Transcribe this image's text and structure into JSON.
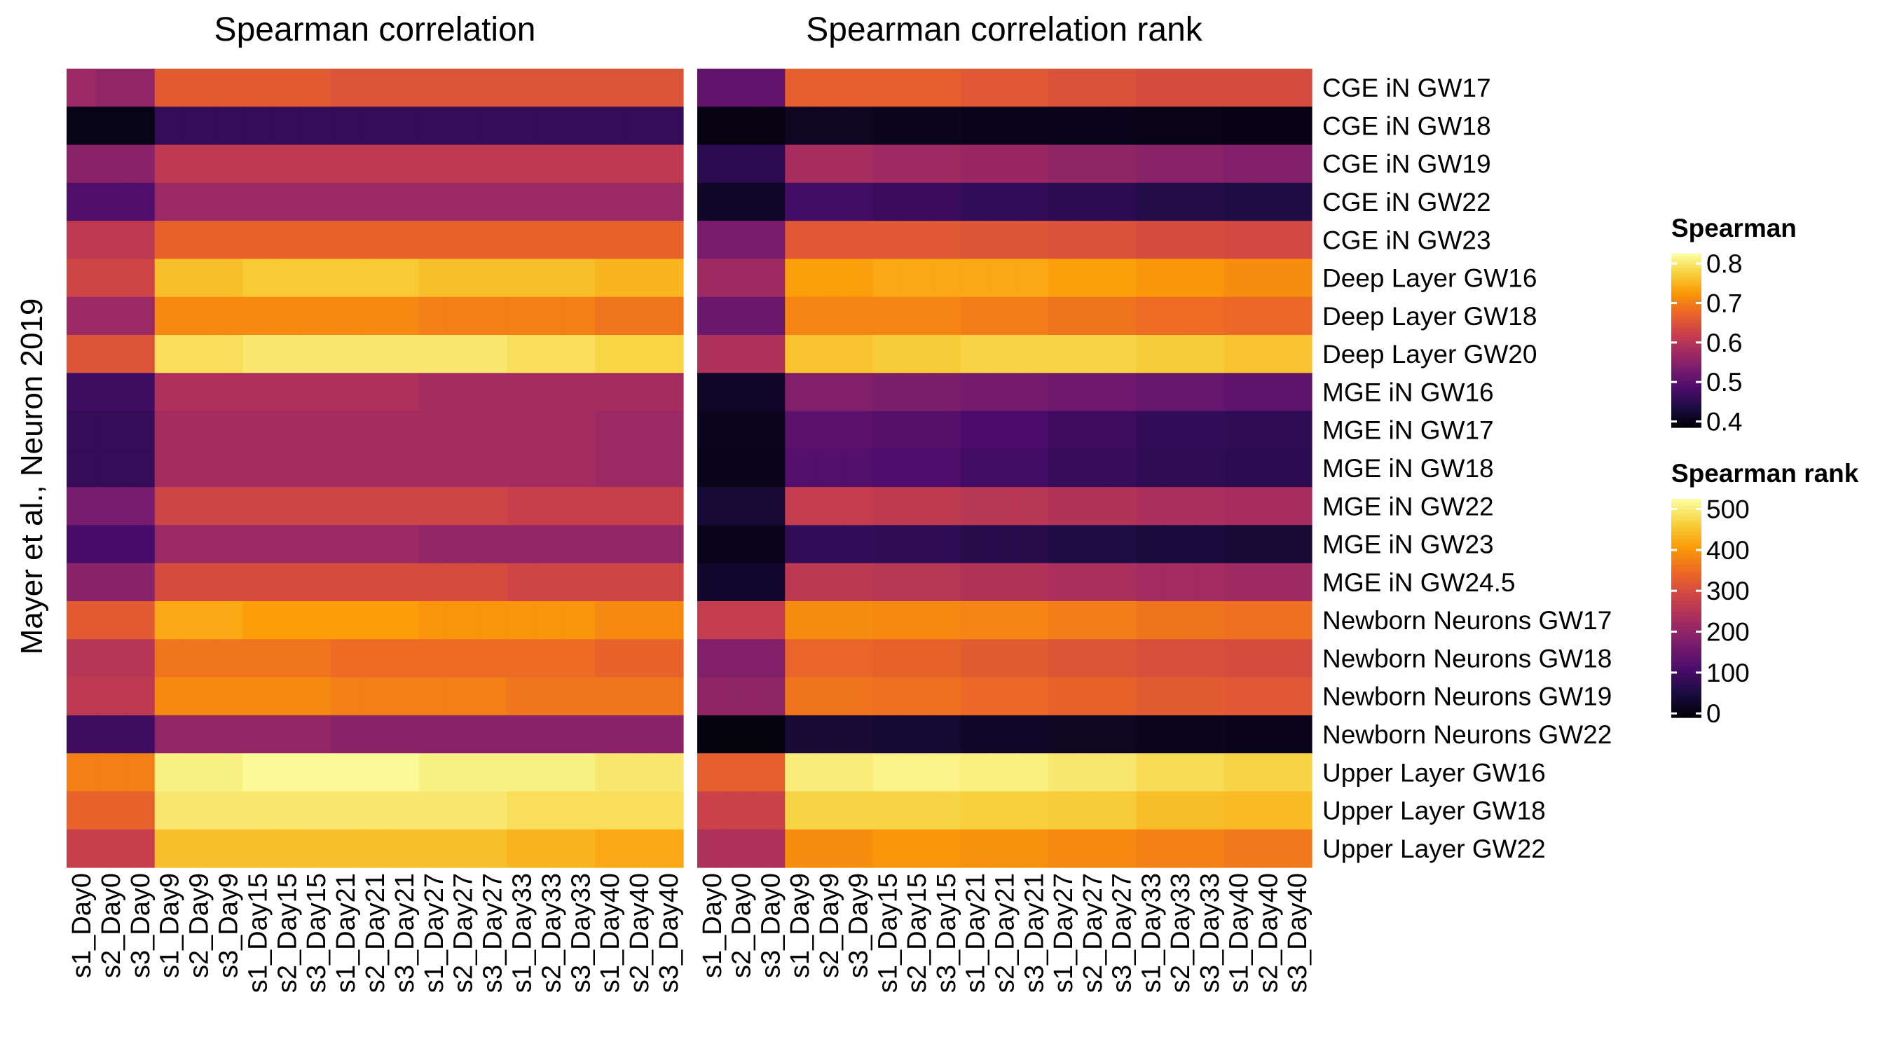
{
  "chart_data": {
    "type": "heatmap",
    "ylabel": "Mayer et al., Neuron 2019",
    "rows": [
      "CGE iN GW17",
      "CGE iN GW18",
      "CGE iN GW19",
      "CGE iN GW22",
      "CGE iN GW23",
      "Deep Layer GW16",
      "Deep Layer GW18",
      "Deep Layer GW20",
      "MGE iN GW16",
      "MGE iN GW17",
      "MGE iN GW18",
      "MGE iN GW22",
      "MGE iN GW23",
      "MGE iN GW24.5",
      "Newborn Neurons GW17",
      "Newborn Neurons GW18",
      "Newborn Neurons GW19",
      "Newborn Neurons GW22",
      "Upper Layer GW16",
      "Upper Layer GW18",
      "Upper Layer GW22"
    ],
    "columns": [
      "s1_Day0",
      "s2_Day0",
      "s3_Day0",
      "s1_Day9",
      "s2_Day9",
      "s3_Day9",
      "s1_Day15",
      "s2_Day15",
      "s3_Day15",
      "s1_Day21",
      "s2_Day21",
      "s3_Day21",
      "s1_Day27",
      "s2_Day27",
      "s3_Day27",
      "s1_Day33",
      "s2_Day33",
      "s3_Day33",
      "s1_Day40",
      "s2_Day40",
      "s3_Day40"
    ],
    "panels": [
      {
        "title": "Spearman correlation",
        "legend": "Spearman",
        "values": [
          [
            0.57,
            0.56,
            0.56,
            0.66,
            0.66,
            0.66,
            0.66,
            0.66,
            0.66,
            0.65,
            0.65,
            0.65,
            0.65,
            0.65,
            0.65,
            0.65,
            0.65,
            0.65,
            0.65,
            0.65,
            0.65
          ],
          [
            0.4,
            0.4,
            0.4,
            0.46,
            0.46,
            0.46,
            0.46,
            0.46,
            0.46,
            0.46,
            0.46,
            0.46,
            0.46,
            0.46,
            0.46,
            0.46,
            0.46,
            0.46,
            0.46,
            0.46,
            0.46
          ],
          [
            0.55,
            0.55,
            0.55,
            0.61,
            0.61,
            0.61,
            0.61,
            0.61,
            0.61,
            0.61,
            0.61,
            0.61,
            0.61,
            0.61,
            0.61,
            0.61,
            0.61,
            0.61,
            0.61,
            0.61,
            0.61
          ],
          [
            0.49,
            0.49,
            0.49,
            0.57,
            0.57,
            0.57,
            0.57,
            0.57,
            0.57,
            0.57,
            0.57,
            0.57,
            0.57,
            0.57,
            0.57,
            0.57,
            0.57,
            0.57,
            0.57,
            0.57,
            0.57
          ],
          [
            0.61,
            0.61,
            0.61,
            0.67,
            0.67,
            0.67,
            0.67,
            0.67,
            0.67,
            0.67,
            0.67,
            0.67,
            0.67,
            0.67,
            0.67,
            0.67,
            0.67,
            0.67,
            0.67,
            0.67,
            0.67
          ],
          [
            0.63,
            0.63,
            0.63,
            0.76,
            0.76,
            0.76,
            0.77,
            0.77,
            0.77,
            0.77,
            0.77,
            0.77,
            0.76,
            0.76,
            0.76,
            0.76,
            0.76,
            0.76,
            0.75,
            0.75,
            0.75
          ],
          [
            0.57,
            0.57,
            0.57,
            0.71,
            0.71,
            0.71,
            0.71,
            0.71,
            0.71,
            0.71,
            0.71,
            0.71,
            0.7,
            0.7,
            0.7,
            0.7,
            0.7,
            0.7,
            0.69,
            0.69,
            0.69
          ],
          [
            0.65,
            0.65,
            0.65,
            0.79,
            0.79,
            0.79,
            0.8,
            0.8,
            0.8,
            0.8,
            0.8,
            0.8,
            0.8,
            0.8,
            0.8,
            0.79,
            0.79,
            0.79,
            0.78,
            0.78,
            0.78
          ],
          [
            0.47,
            0.47,
            0.47,
            0.59,
            0.59,
            0.59,
            0.59,
            0.59,
            0.59,
            0.59,
            0.59,
            0.59,
            0.58,
            0.58,
            0.58,
            0.58,
            0.58,
            0.58,
            0.58,
            0.58,
            0.58
          ],
          [
            0.46,
            0.46,
            0.46,
            0.58,
            0.58,
            0.58,
            0.58,
            0.58,
            0.58,
            0.58,
            0.58,
            0.58,
            0.58,
            0.58,
            0.58,
            0.58,
            0.58,
            0.58,
            0.57,
            0.57,
            0.57
          ],
          [
            0.46,
            0.46,
            0.46,
            0.58,
            0.58,
            0.58,
            0.58,
            0.58,
            0.58,
            0.58,
            0.58,
            0.58,
            0.58,
            0.58,
            0.58,
            0.58,
            0.58,
            0.58,
            0.57,
            0.57,
            0.57
          ],
          [
            0.53,
            0.53,
            0.53,
            0.63,
            0.63,
            0.63,
            0.63,
            0.63,
            0.63,
            0.63,
            0.63,
            0.63,
            0.63,
            0.63,
            0.63,
            0.62,
            0.62,
            0.62,
            0.62,
            0.62,
            0.62
          ],
          [
            0.48,
            0.48,
            0.48,
            0.57,
            0.57,
            0.57,
            0.57,
            0.57,
            0.57,
            0.57,
            0.57,
            0.57,
            0.56,
            0.56,
            0.56,
            0.56,
            0.56,
            0.56,
            0.56,
            0.56,
            0.56
          ],
          [
            0.55,
            0.55,
            0.55,
            0.64,
            0.64,
            0.64,
            0.64,
            0.64,
            0.64,
            0.64,
            0.64,
            0.64,
            0.64,
            0.64,
            0.64,
            0.63,
            0.63,
            0.63,
            0.63,
            0.63,
            0.63
          ],
          [
            0.66,
            0.66,
            0.66,
            0.74,
            0.74,
            0.74,
            0.73,
            0.73,
            0.73,
            0.73,
            0.73,
            0.73,
            0.72,
            0.72,
            0.72,
            0.72,
            0.72,
            0.72,
            0.71,
            0.71,
            0.71
          ],
          [
            0.6,
            0.6,
            0.6,
            0.69,
            0.69,
            0.69,
            0.69,
            0.69,
            0.69,
            0.68,
            0.68,
            0.68,
            0.68,
            0.68,
            0.68,
            0.68,
            0.68,
            0.68,
            0.67,
            0.67,
            0.67
          ],
          [
            0.61,
            0.61,
            0.61,
            0.71,
            0.71,
            0.71,
            0.71,
            0.71,
            0.71,
            0.7,
            0.7,
            0.7,
            0.7,
            0.7,
            0.7,
            0.69,
            0.69,
            0.69,
            0.69,
            0.69,
            0.69
          ],
          [
            0.47,
            0.47,
            0.47,
            0.56,
            0.56,
            0.56,
            0.56,
            0.56,
            0.56,
            0.55,
            0.55,
            0.55,
            0.55,
            0.55,
            0.55,
            0.55,
            0.55,
            0.55,
            0.55,
            0.55,
            0.55
          ],
          [
            0.7,
            0.7,
            0.7,
            0.81,
            0.81,
            0.81,
            0.82,
            0.82,
            0.82,
            0.82,
            0.82,
            0.82,
            0.81,
            0.81,
            0.81,
            0.81,
            0.81,
            0.81,
            0.8,
            0.8,
            0.8
          ],
          [
            0.67,
            0.67,
            0.67,
            0.8,
            0.8,
            0.8,
            0.8,
            0.8,
            0.8,
            0.8,
            0.8,
            0.8,
            0.8,
            0.8,
            0.8,
            0.79,
            0.79,
            0.79,
            0.79,
            0.79,
            0.79
          ],
          [
            0.62,
            0.62,
            0.62,
            0.76,
            0.76,
            0.76,
            0.76,
            0.76,
            0.76,
            0.76,
            0.76,
            0.76,
            0.76,
            0.76,
            0.76,
            0.75,
            0.75,
            0.75,
            0.74,
            0.74,
            0.74
          ]
        ]
      },
      {
        "title": "Spearman correlation rank",
        "legend": "Spearman rank",
        "values": [
          [
            140,
            140,
            140,
            330,
            330,
            330,
            330,
            330,
            330,
            320,
            320,
            320,
            310,
            310,
            310,
            300,
            300,
            300,
            300,
            300,
            300
          ],
          [
            5,
            5,
            5,
            20,
            20,
            20,
            15,
            15,
            15,
            12,
            12,
            12,
            10,
            10,
            10,
            8,
            8,
            8,
            6,
            6,
            6
          ],
          [
            70,
            70,
            70,
            230,
            230,
            230,
            220,
            220,
            220,
            210,
            210,
            210,
            200,
            200,
            200,
            190,
            190,
            190,
            180,
            180,
            180
          ],
          [
            25,
            25,
            25,
            100,
            100,
            100,
            90,
            90,
            90,
            80,
            80,
            80,
            70,
            70,
            70,
            60,
            60,
            60,
            55,
            55,
            55
          ],
          [
            170,
            170,
            170,
            320,
            320,
            320,
            320,
            320,
            320,
            315,
            315,
            315,
            310,
            310,
            310,
            300,
            300,
            300,
            295,
            295,
            295
          ],
          [
            220,
            220,
            220,
            410,
            410,
            410,
            420,
            420,
            420,
            420,
            420,
            420,
            410,
            410,
            410,
            400,
            400,
            400,
            390,
            390,
            390
          ],
          [
            150,
            150,
            150,
            380,
            380,
            380,
            380,
            380,
            380,
            370,
            370,
            370,
            360,
            360,
            360,
            350,
            350,
            350,
            345,
            345,
            345
          ],
          [
            240,
            240,
            240,
            450,
            450,
            450,
            460,
            460,
            460,
            470,
            470,
            470,
            470,
            470,
            470,
            460,
            460,
            460,
            450,
            450,
            450
          ],
          [
            25,
            25,
            25,
            180,
            180,
            180,
            175,
            175,
            175,
            165,
            165,
            165,
            155,
            155,
            155,
            145,
            145,
            145,
            135,
            135,
            135
          ],
          [
            15,
            15,
            15,
            130,
            130,
            130,
            125,
            125,
            125,
            110,
            110,
            110,
            95,
            95,
            95,
            80,
            80,
            80,
            75,
            75,
            75
          ],
          [
            10,
            10,
            10,
            120,
            120,
            120,
            115,
            115,
            115,
            100,
            100,
            100,
            85,
            85,
            85,
            75,
            75,
            75,
            70,
            70,
            70
          ],
          [
            40,
            40,
            40,
            270,
            270,
            270,
            265,
            265,
            265,
            255,
            255,
            255,
            245,
            245,
            245,
            235,
            235,
            235,
            230,
            230,
            230
          ],
          [
            12,
            12,
            12,
            80,
            80,
            80,
            75,
            75,
            75,
            65,
            65,
            65,
            55,
            55,
            55,
            45,
            45,
            45,
            40,
            40,
            40
          ],
          [
            30,
            30,
            30,
            260,
            260,
            260,
            255,
            255,
            255,
            245,
            245,
            245,
            235,
            235,
            235,
            225,
            225,
            225,
            220,
            220,
            220
          ],
          [
            270,
            270,
            270,
            390,
            390,
            390,
            385,
            385,
            385,
            380,
            380,
            380,
            370,
            370,
            370,
            360,
            360,
            360,
            355,
            355,
            355
          ],
          [
            180,
            180,
            180,
            340,
            340,
            340,
            335,
            335,
            335,
            325,
            325,
            325,
            315,
            315,
            315,
            305,
            305,
            305,
            300,
            300,
            300
          ],
          [
            200,
            200,
            200,
            360,
            360,
            360,
            355,
            355,
            355,
            345,
            345,
            345,
            335,
            335,
            335,
            325,
            325,
            325,
            320,
            320,
            320
          ],
          [
            3,
            3,
            3,
            40,
            40,
            40,
            35,
            35,
            35,
            25,
            25,
            25,
            20,
            20,
            20,
            15,
            15,
            15,
            12,
            12,
            12
          ],
          [
            330,
            330,
            330,
            500,
            500,
            500,
            510,
            510,
            510,
            505,
            505,
            505,
            495,
            495,
            495,
            480,
            480,
            480,
            470,
            470,
            470
          ],
          [
            280,
            280,
            280,
            470,
            470,
            470,
            470,
            470,
            470,
            465,
            465,
            465,
            460,
            460,
            460,
            445,
            445,
            445,
            440,
            440,
            440
          ],
          [
            240,
            240,
            240,
            390,
            390,
            390,
            400,
            400,
            400,
            395,
            395,
            395,
            385,
            385,
            385,
            375,
            375,
            375,
            365,
            365,
            365
          ]
        ]
      }
    ],
    "legends": [
      {
        "title": "Spearman",
        "ticks": [
          "0.8",
          "0.7",
          "0.6",
          "0.5",
          "0.4"
        ],
        "tick_values": [
          0.8,
          0.7,
          0.6,
          0.5,
          0.4
        ],
        "range": [
          0.385,
          0.825
        ]
      },
      {
        "title": "Spearman rank",
        "ticks": [
          "500",
          "400",
          "300",
          "200",
          "100",
          "0"
        ],
        "tick_values": [
          500,
          400,
          300,
          200,
          100,
          0
        ],
        "range": [
          -10,
          525
        ]
      }
    ],
    "colormap": "inferno",
    "colormap_stops": [
      "#000004",
      "#1b0c41",
      "#4a0c6b",
      "#781c6d",
      "#a52c60",
      "#cf4446",
      "#ed6925",
      "#fb9b06",
      "#f7d13d",
      "#fcffa4"
    ],
    "legend_placement": "right"
  }
}
